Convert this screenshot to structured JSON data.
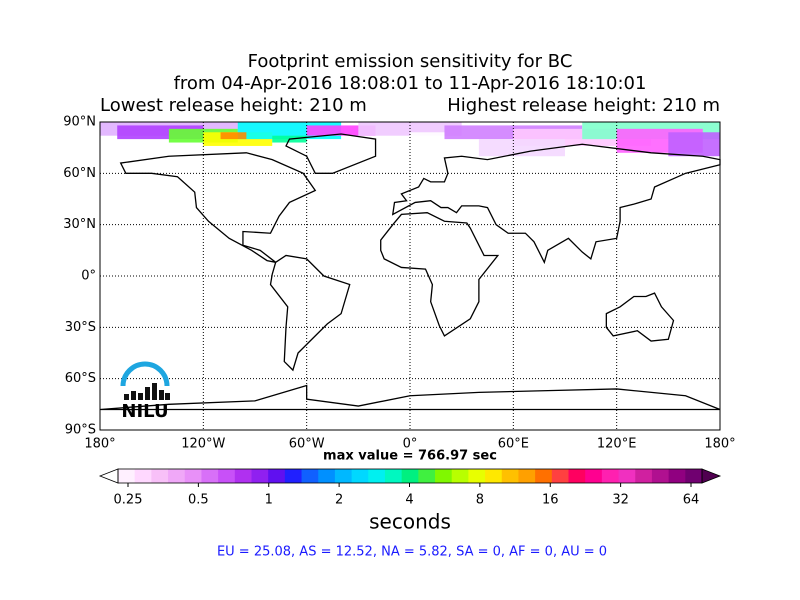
{
  "title": {
    "line1": "Footprint emission sensitivity for BC",
    "line2": "from 04-Apr-2016 18:08:01 to 11-Apr-2016 18:10:01",
    "lowest": "Lowest release height: 210 m",
    "highest": "Highest release height: 210 m"
  },
  "map": {
    "lat_labels": [
      "90°N",
      "60°N",
      "30°N",
      "0°",
      "30°S",
      "60°S",
      "90°S"
    ],
    "lon_labels": [
      "180°",
      "120°W",
      "60°W",
      "0°",
      "60°E",
      "120°E",
      "180°"
    ],
    "logo": "NILU"
  },
  "max_value": "max value = 766.97 sec",
  "colorbar": {
    "ticks": [
      "0.25",
      "0.5",
      "1",
      "2",
      "4",
      "8",
      "16",
      "32",
      "64"
    ],
    "label": "seconds"
  },
  "footer": "EU = 25.08,  AS = 12.52,  NA = 5.82,  SA = 0,  AF = 0,  AU = 0"
}
